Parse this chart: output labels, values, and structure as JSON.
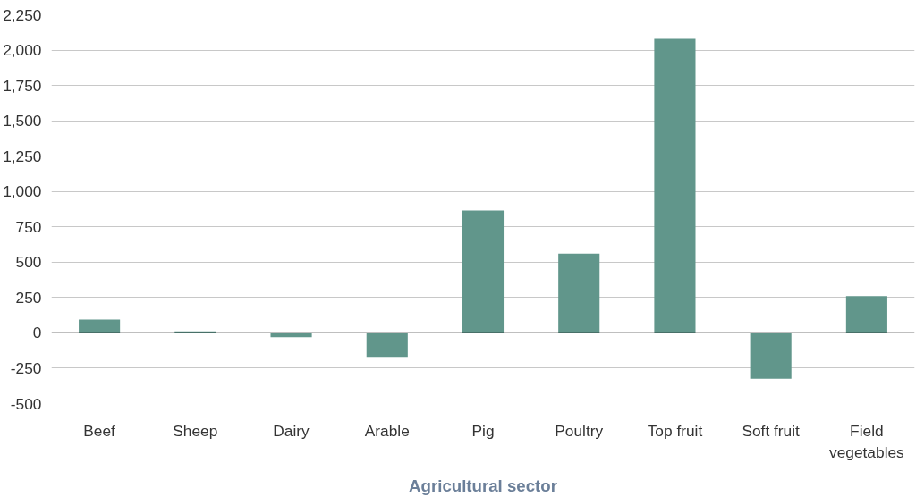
{
  "chart_data": {
    "type": "bar",
    "xlabel": "Agricultural sector",
    "categories": [
      "Beef",
      "Sheep",
      "Dairy",
      "Arable",
      "Pig",
      "Poultry",
      "Top fruit",
      "Soft fruit",
      "Field vegetables"
    ],
    "values": [
      95,
      10,
      -30,
      -170,
      865,
      560,
      2080,
      -325,
      260
    ],
    "color": "#61968b",
    "ylim": [
      -500,
      2250
    ],
    "yticks": [
      {
        "value": -500,
        "label": "-500"
      },
      {
        "value": -250,
        "label": "-250"
      },
      0,
      250,
      500,
      750,
      {
        "value": 1000,
        "label": "1,000"
      },
      {
        "value": 1250,
        "label": "1,250"
      },
      {
        "value": 1500,
        "label": "1,500"
      },
      {
        "value": 1750,
        "label": "1,750"
      },
      {
        "value": 2000,
        "label": "2,000"
      },
      {
        "value": 2250,
        "label": "2,250"
      }
    ],
    "grid": "y"
  }
}
